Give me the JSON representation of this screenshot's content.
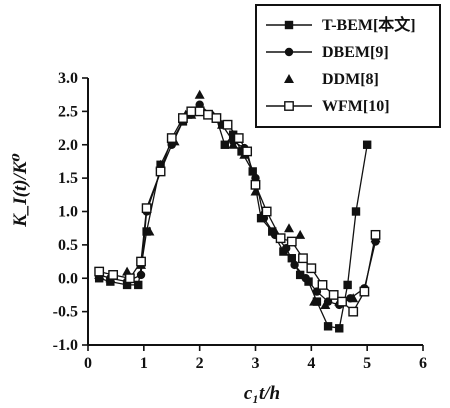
{
  "chart_data": {
    "type": "line",
    "xlabel": "c₁t/h",
    "ylabel": "K_I(t)/K⁰",
    "xlim": [
      0,
      6
    ],
    "ylim": [
      -1.0,
      3.0
    ],
    "x_ticks": [
      "0",
      "1",
      "2",
      "3",
      "4",
      "5",
      "6"
    ],
    "y_ticks": [
      "3.0",
      "2.5",
      "2.0",
      "1.5",
      "1.0",
      "0.5",
      "0.0",
      "-0.5",
      "-1.0"
    ],
    "grid": false,
    "legend_position": "top-right",
    "series": [
      {
        "name": "T-BEM[本文]",
        "marker": "square-filled",
        "line": true,
        "x": [
          0.2,
          0.4,
          0.7,
          0.9,
          1.05,
          1.3,
          1.5,
          1.7,
          1.85,
          2.0,
          2.15,
          2.3,
          2.45,
          2.6,
          2.75,
          2.95,
          3.1,
          3.3,
          3.5,
          3.65,
          3.8,
          3.95,
          4.1,
          4.3,
          4.5,
          4.65,
          4.8,
          5.0
        ],
        "y": [
          0.0,
          -0.05,
          -0.1,
          -0.1,
          0.7,
          1.7,
          2.05,
          2.35,
          2.5,
          2.5,
          2.45,
          2.4,
          2.0,
          2.15,
          1.9,
          1.6,
          0.9,
          0.7,
          0.4,
          0.3,
          0.05,
          -0.05,
          -0.35,
          -0.72,
          -0.75,
          -0.1,
          1.0,
          2.0
        ]
      },
      {
        "name": "DBEM[9]",
        "marker": "circle-filled",
        "line": true,
        "x": [
          0.2,
          0.4,
          0.7,
          0.95,
          1.05,
          1.3,
          1.5,
          1.7,
          1.85,
          2.0,
          2.2,
          2.4,
          2.6,
          2.8,
          3.0,
          3.15,
          3.35,
          3.55,
          3.7,
          3.9,
          4.1,
          4.3,
          4.5,
          4.7,
          4.95,
          5.15
        ],
        "y": [
          0.05,
          0.0,
          -0.05,
          0.05,
          1.0,
          1.6,
          2.0,
          2.35,
          2.45,
          2.6,
          2.45,
          2.3,
          2.05,
          1.95,
          1.5,
          0.9,
          0.65,
          0.45,
          0.2,
          0.0,
          -0.2,
          -0.35,
          -0.4,
          -0.3,
          -0.15,
          0.55
        ]
      },
      {
        "name": "DDM[8]",
        "marker": "triangle-filled",
        "line": false,
        "x": [
          0.2,
          0.4,
          0.7,
          0.95,
          1.1,
          1.3,
          1.55,
          1.75,
          1.85,
          2.0,
          2.2,
          2.4,
          2.6,
          2.8,
          3.0,
          3.15,
          3.35,
          3.6,
          3.8,
          4.05,
          4.25,
          4.5,
          4.75,
          4.95,
          5.15
        ],
        "y": [
          0.05,
          0.0,
          0.1,
          0.2,
          0.7,
          1.7,
          2.05,
          2.45,
          2.45,
          2.75,
          2.45,
          2.3,
          2.0,
          1.85,
          1.3,
          1.0,
          0.7,
          0.75,
          0.65,
          -0.35,
          -0.4,
          -0.35,
          -0.3,
          -0.2,
          0.6
        ]
      },
      {
        "name": "WFM[10]",
        "marker": "square-open",
        "line": true,
        "x": [
          0.2,
          0.45,
          0.75,
          0.95,
          1.05,
          1.3,
          1.5,
          1.7,
          1.85,
          2.0,
          2.15,
          2.3,
          2.5,
          2.7,
          2.85,
          3.0,
          3.2,
          3.45,
          3.65,
          3.85,
          4.0,
          4.2,
          4.4,
          4.55,
          4.75,
          4.95,
          5.15
        ],
        "y": [
          0.1,
          0.05,
          0.0,
          0.25,
          1.05,
          1.6,
          2.1,
          2.4,
          2.5,
          2.5,
          2.45,
          2.4,
          2.3,
          2.1,
          1.9,
          1.4,
          1.0,
          0.6,
          0.55,
          0.3,
          0.15,
          -0.1,
          -0.25,
          -0.35,
          -0.5,
          -0.2,
          0.65
        ]
      }
    ]
  },
  "colors": {
    "ink": "#111111",
    "background": "#ffffff"
  },
  "legend": {
    "labels": [
      "T-BEM[本文]",
      "DBEM[9]",
      "DDM[8]",
      "WFM[10]"
    ]
  }
}
